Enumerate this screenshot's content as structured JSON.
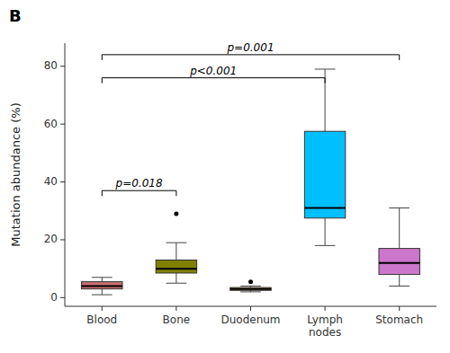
{
  "chart_data": {
    "type": "box",
    "title": "B",
    "ylabel": "Mutation abundance (%)",
    "categories": [
      "Blood",
      "Bone",
      "Duodenum",
      "Lymph\nnodes",
      "Stomach"
    ],
    "colors": [
      "#c97070",
      "#808000",
      "#c8a870",
      "#00bfff",
      "#cc77cc"
    ],
    "values": [
      {
        "whislo": 1.0,
        "q1": 3.0,
        "med": 4.0,
        "q3": 5.5,
        "whishi": 7.0,
        "fliers": []
      },
      {
        "whislo": 5.0,
        "q1": 8.5,
        "med": 10.0,
        "q3": 13.0,
        "whishi": 19.0,
        "fliers": [
          29.0
        ]
      },
      {
        "whislo": 2.0,
        "q1": 2.5,
        "med": 3.0,
        "q3": 3.5,
        "whishi": 4.0,
        "fliers": [
          5.5
        ]
      },
      {
        "whislo": 18.0,
        "q1": 27.5,
        "med": 31.0,
        "q3": 57.5,
        "whishi": 79.0,
        "fliers": []
      },
      {
        "whislo": 4.0,
        "q1": 8.0,
        "med": 12.0,
        "q3": 17.0,
        "whishi": 31.0,
        "fliers": []
      }
    ],
    "annotations": [
      {
        "from": "Blood",
        "to": "Stomach",
        "y": 84,
        "label": "p=0.001"
      },
      {
        "from": "Blood",
        "to": "Lymph\nnodes",
        "y": 76,
        "label": "p<0.001"
      },
      {
        "from": "Blood",
        "to": "Bone",
        "y": 37,
        "label": "p=0.018"
      }
    ],
    "ylim": [
      -3,
      88
    ],
    "yticks": [
      0,
      20,
      40,
      60,
      80
    ],
    "grid": false
  }
}
